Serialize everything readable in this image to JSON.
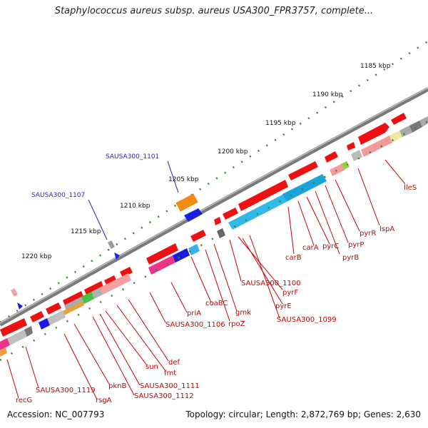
{
  "title": "Staphylococcus aureus subsp. aureus USA300_FPR3757, complete...",
  "footer": {
    "accession": "Accession: NC_007793",
    "summary": "Topology: circular; Length: 2,872,769 bp; Genes: 2,630"
  },
  "colors": {
    "backbone": "#8c8c8c",
    "plus_strand_gene": "#ee1111",
    "gene_label": "#cc0000",
    "highlight_label": "#1f1fcc",
    "tick": "#2a8a2a"
  },
  "scale_labels": [
    "1185 kbp",
    "1190 kbp",
    "1195 kbp",
    "1200 kbp",
    "1205 kbp",
    "1210 kbp",
    "1215 kbp",
    "1220 kbp"
  ],
  "highlighted_genes": [
    "SAUSA300_1101",
    "SAUSA300_1107"
  ],
  "gene_labels": [
    "IleS",
    "lspA",
    "pyrR",
    "pyrP",
    "pyrB",
    "pyrC",
    "carA",
    "carB",
    "SAUSA300_1100",
    "pyrF",
    "pyrE",
    "SAUSA300_1099",
    "gmk",
    "rpoZ",
    "coaBC",
    "priA",
    "SAUSA300_1106",
    "def",
    "fmt",
    "sun",
    "SAUSA300_1111",
    "SAUSA300_1112",
    "pknB",
    "rsgA",
    "SAUSA300_1119",
    "recG"
  ]
}
